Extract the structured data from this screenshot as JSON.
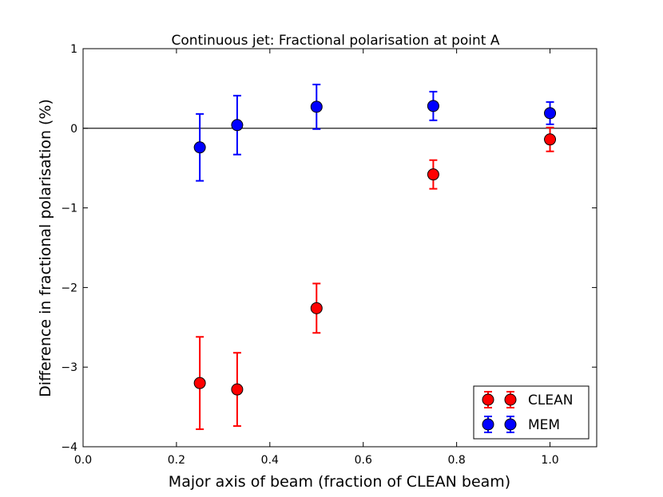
{
  "chart_data": {
    "type": "scatter",
    "title": "Continuous jet: Fractional polarisation at point A",
    "xlabel": "Major axis of beam (fraction of CLEAN beam)",
    "ylabel": "Difference in fractional polarisation (%)",
    "xlim": [
      0.0,
      1.1
    ],
    "ylim": [
      -4,
      1
    ],
    "xticks": [
      "0.0",
      "0.2",
      "0.4",
      "0.6",
      "0.8",
      "1.0"
    ],
    "yticks": [
      "1",
      "0",
      "−1",
      "−2",
      "−3",
      "−4"
    ],
    "reference_line_y": 0,
    "legend_position": "lower-right",
    "series": [
      {
        "name": "CLEAN",
        "color": "#ff0000",
        "x": [
          0.25,
          0.33,
          0.5,
          0.75,
          1.0
        ],
        "y": [
          -3.2,
          -3.28,
          -2.26,
          -0.58,
          -0.14
        ],
        "err": [
          0.58,
          0.46,
          0.31,
          0.18,
          0.15
        ]
      },
      {
        "name": "MEM",
        "color": "#0000ff",
        "x": [
          0.25,
          0.33,
          0.5,
          0.75,
          1.0
        ],
        "y": [
          -0.24,
          0.04,
          0.27,
          0.28,
          0.19
        ],
        "err": [
          0.42,
          0.37,
          0.28,
          0.18,
          0.14
        ]
      }
    ]
  }
}
